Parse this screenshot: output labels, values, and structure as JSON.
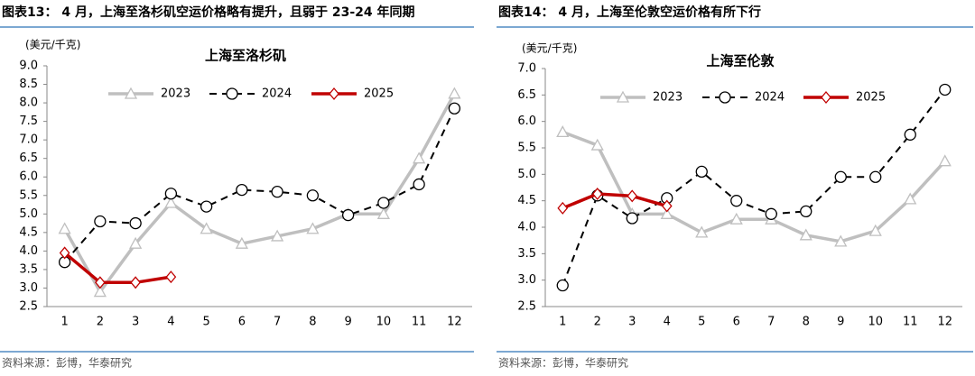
{
  "chart_data": [
    {
      "type": "line",
      "title": "图表13：  4 月，上海至洛杉矶空运价格略有提升，且弱于 23-24 年同期",
      "subtitle": "上海至洛杉矶",
      "y_label": "(美元/千克)",
      "source": "资料来源：彭博，华泰研究",
      "categories": [
        "1",
        "2",
        "3",
        "4",
        "5",
        "6",
        "7",
        "8",
        "9",
        "10",
        "11",
        "12"
      ],
      "ylim": [
        2.5,
        9.0
      ],
      "yticks": [
        2.5,
        {
          "value": 3,
          "label": "3.0"
        },
        3.5,
        {
          "value": 4,
          "label": "4.0"
        },
        4.5,
        {
          "value": 5,
          "label": "5.0"
        },
        5.5,
        {
          "value": 6,
          "label": "6.0"
        },
        6.5,
        {
          "value": 7,
          "label": "7.0"
        },
        7.5,
        {
          "value": 8,
          "label": "8.0"
        },
        8.5,
        {
          "value": 9,
          "label": "9.0"
        }
      ],
      "series": [
        {
          "name": "2023",
          "color": "#bfbfbf",
          "marker": "triangle",
          "values": [
            4.6,
            2.9,
            4.2,
            5.3,
            4.6,
            4.2,
            4.4,
            4.6,
            5.0,
            5.0,
            6.5,
            8.25
          ]
        },
        {
          "name": "2024",
          "color": "#000000",
          "marker": "circle",
          "dashed": true,
          "values": [
            3.7,
            4.8,
            4.75,
            5.55,
            5.2,
            5.65,
            5.6,
            5.5,
            4.97,
            5.3,
            5.8,
            7.85
          ]
        },
        {
          "name": "2025",
          "color": "#c00000",
          "marker": "diamond",
          "values": [
            3.95,
            3.15,
            3.15,
            3.3,
            null,
            null,
            null,
            null,
            null,
            null,
            null,
            null
          ]
        }
      ]
    },
    {
      "type": "line",
      "title": "图表14：  4 月，上海至伦敦空运价格有所下行",
      "subtitle": "上海至伦敦",
      "y_label": "(美元/千克)",
      "source": "资料来源：彭博，华泰研究",
      "categories": [
        "1",
        "2",
        "3",
        "4",
        "5",
        "6",
        "7",
        "8",
        "9",
        "10",
        "11",
        "12"
      ],
      "ylim": [
        2.5,
        7.0
      ],
      "yticks": [
        2.5,
        {
          "value": 3,
          "label": "3.0"
        },
        3.5,
        {
          "value": 4,
          "label": "4.0"
        },
        4.5,
        {
          "value": 5,
          "label": "5.0"
        },
        5.5,
        {
          "value": 6,
          "label": "6.0"
        },
        6.5,
        {
          "value": 7,
          "label": "7.0"
        }
      ],
      "series": [
        {
          "name": "2023",
          "color": "#bfbfbf",
          "marker": "triangle",
          "values": [
            5.8,
            5.55,
            4.25,
            4.25,
            3.9,
            4.15,
            4.15,
            3.85,
            3.73,
            3.93,
            4.53,
            5.25
          ]
        },
        {
          "name": "2024",
          "color": "#000000",
          "marker": "circle",
          "dashed": true,
          "values": [
            2.9,
            4.6,
            4.17,
            4.55,
            5.05,
            4.5,
            4.25,
            4.3,
            4.95,
            4.95,
            5.75,
            6.6
          ]
        },
        {
          "name": "2025",
          "color": "#c00000",
          "marker": "diamond",
          "values": [
            4.36,
            4.63,
            4.59,
            4.4,
            null,
            null,
            null,
            null,
            null,
            null,
            null,
            null
          ]
        }
      ]
    }
  ]
}
